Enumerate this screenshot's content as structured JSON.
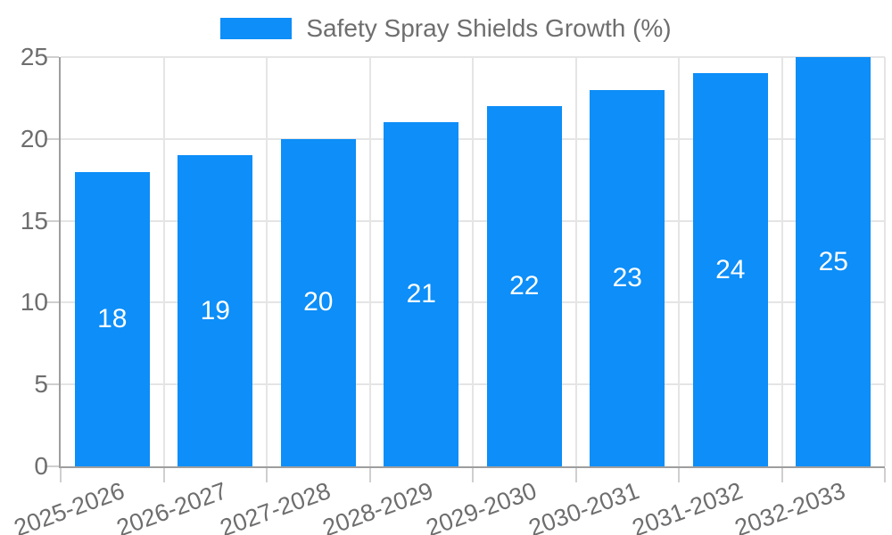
{
  "legend": {
    "label": "Safety Spray Shields Growth (%)"
  },
  "colors": {
    "bar": "#0D8EF8",
    "bar_value_label": "#FFFFFF",
    "axis_text": "#6E6E6E",
    "axis_line": "#9E9E9E",
    "gridline": "#E5E5E5",
    "tick_mark": "#CFCFCF",
    "background": "#FFFFFF"
  },
  "chart_data": {
    "type": "bar",
    "title": "Safety Spray Shields Growth (%)",
    "categories": [
      "2025-2026",
      "2026-2027",
      "2027-2028",
      "2028-2029",
      "2029-2030",
      "2030-2031",
      "2031-2032",
      "2032-2033"
    ],
    "values": [
      18,
      19,
      20,
      21,
      22,
      23,
      24,
      25
    ],
    "bar_value_labels": [
      "18",
      "19",
      "20",
      "21",
      "22",
      "23",
      "24",
      "25"
    ],
    "xlabel": "",
    "ylabel": "",
    "ylim": [
      0,
      25
    ],
    "yticks": [
      0,
      5,
      10,
      15,
      20,
      25
    ],
    "grid": true,
    "legend_position": "top",
    "x_label_rotation_deg": -20
  }
}
